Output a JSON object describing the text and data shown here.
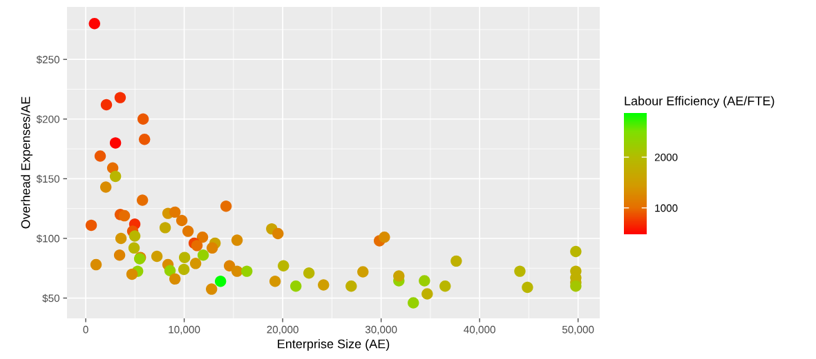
{
  "chart_data": {
    "type": "scatter",
    "xlabel": "Enterprise Size (AE)",
    "ylabel": "Overhead Expenses/AE",
    "clabel": "Labour Efficiency (AE/FTE)",
    "marker": "circle",
    "grid": true,
    "xlim": [
      -1900,
      52200
    ],
    "ylim": [
      33,
      294
    ],
    "xticks": [
      {
        "value": 0,
        "label": "0"
      },
      {
        "value": 10000,
        "label": "10,000"
      },
      {
        "value": 20000,
        "label": "20,000"
      },
      {
        "value": 30000,
        "label": "30,000"
      },
      {
        "value": 40000,
        "label": "40,000"
      },
      {
        "value": 50000,
        "label": "50,000"
      }
    ],
    "yticks": [
      {
        "value": 50,
        "label": "$50"
      },
      {
        "value": 100,
        "label": "$100"
      },
      {
        "value": 150,
        "label": "$150"
      },
      {
        "value": 200,
        "label": "$200"
      },
      {
        "value": 250,
        "label": "$250"
      }
    ],
    "clim": [
      480,
      2870
    ],
    "cticks": [
      1000,
      2000
    ],
    "series": [
      {
        "x": [
          890,
          3500,
          2100,
          5830,
          3020,
          5970,
          1470,
          2740,
          3020,
          2040,
          5760,
          3510,
          3930,
          560,
          4980,
          4770,
          4980,
          3580,
          4910,
          5550,
          5480,
          3440,
          1050,
          5270,
          4700,
          7230,
          8350,
          8070,
          9060,
          9760,
          10390,
          11860,
          11020,
          11300,
          13130,
          12850,
          11930,
          10040,
          8350,
          8560,
          9970,
          11160,
          9060,
          13690,
          12780,
          14250,
          15370,
          14600,
          15370,
          16360,
          18890,
          19520,
          20080,
          19230,
          21340,
          22670,
          24150,
          26960,
          28150,
          29830,
          30330,
          31800,
          31800,
          33270,
          34400,
          34680,
          36500,
          37630,
          44090,
          44860,
          49770,
          49770,
          49770,
          49770,
          49770
        ],
        "values": [
          280,
          218,
          212,
          200,
          180,
          183,
          169,
          159,
          152,
          143,
          132,
          120,
          119,
          111,
          112,
          106,
          102,
          100,
          92,
          84,
          83,
          86,
          78,
          72.5,
          70,
          85,
          121,
          109,
          122,
          115,
          106,
          101,
          96,
          94,
          96,
          92,
          86,
          84,
          78,
          73,
          74,
          79,
          66,
          64,
          57.5,
          127,
          98.5,
          77,
          72.5,
          72.5,
          108,
          104,
          77,
          64,
          60,
          71,
          61,
          60,
          72,
          98,
          101,
          64.5,
          68.5,
          46,
          64.5,
          53.5,
          60,
          81,
          72.5,
          59,
          89,
          72.5,
          67,
          63,
          60
        ],
        "cvalues": [
          500,
          700,
          700,
          900,
          500,
          900,
          900,
          1000,
          1900,
          1300,
          1000,
          900,
          1000,
          900,
          700,
          900,
          1900,
          1400,
          1900,
          1200,
          2300,
          1200,
          1300,
          2300,
          1300,
          1500,
          1400,
          1700,
          1100,
          1100,
          1100,
          1100,
          800,
          1000,
          1600,
          1200,
          2300,
          1900,
          1300,
          2300,
          1900,
          1400,
          1300,
          2870,
          1300,
          1000,
          1300,
          1200,
          1300,
          2300,
          1600,
          1200,
          1900,
          1400,
          2300,
          1900,
          1500,
          1800,
          1500,
          1000,
          1300,
          2300,
          1600,
          2300,
          2250,
          1800,
          1900,
          1800,
          1900,
          1900,
          1900,
          1800,
          1800,
          1800,
          2150
        ]
      }
    ]
  }
}
